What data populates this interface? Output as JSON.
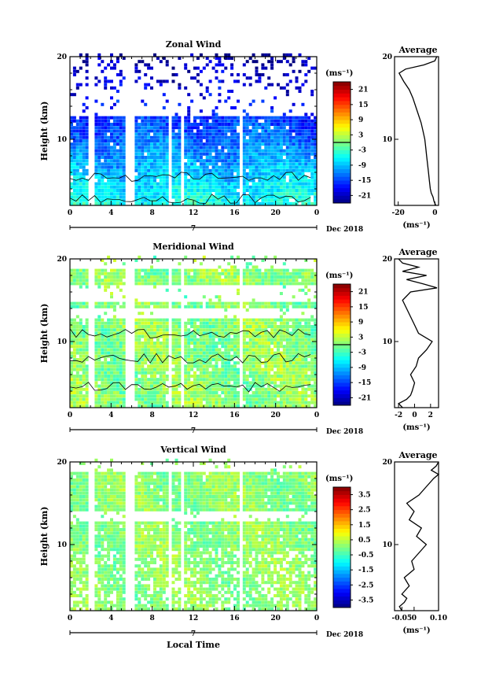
{
  "chart_data": [
    {
      "type": "heatmap",
      "title": "Zonal Wind",
      "ylabel": "Height (km)",
      "xlabel": "",
      "x_ticks": [
        "0",
        "4",
        "8",
        "12",
        "16",
        "20",
        "0"
      ],
      "y_ticks": [
        "20",
        "10"
      ],
      "date_label": "Dec 2018",
      "day_label": "7",
      "xlim": [
        0,
        24
      ],
      "ylim": [
        2,
        20
      ],
      "colorbar": {
        "unit": "(ms⁻¹)",
        "ticks": [
          "21",
          "15",
          "9",
          "3",
          "-3",
          "-9",
          "-15",
          "-21"
        ],
        "range": [
          -24,
          24
        ]
      },
      "field": {
        "base": -5,
        "trend": -0.25,
        "variation": 3
      },
      "zero_contour_heights": [
        2.8,
        5.5
      ],
      "average": {
        "title": "Average",
        "x_ticks": [
          "-20",
          "0"
        ],
        "xlim": [
          -22,
          2
        ],
        "unit": "(ms⁻¹)",
        "heights": [
          2,
          2.5,
          3,
          3.5,
          4,
          5,
          6,
          7,
          8,
          9,
          10,
          11,
          12,
          13,
          14,
          15,
          16,
          17,
          18,
          18.5,
          19,
          19.5,
          20
        ],
        "values": [
          0.5,
          -0.5,
          -1,
          -2,
          -2.5,
          -3,
          -3.5,
          -4,
          -4.5,
          -5,
          -5.5,
          -6.5,
          -7.5,
          -9,
          -10.5,
          -12,
          -14,
          -17,
          -19.5,
          -16,
          -6,
          0,
          1
        ]
      }
    },
    {
      "type": "heatmap",
      "title": "Meridional Wind",
      "ylabel": "Height (km)",
      "xlabel": "",
      "x_ticks": [
        "0",
        "4",
        "8",
        "12",
        "16",
        "20",
        "0"
      ],
      "y_ticks": [
        "20",
        "10"
      ],
      "date_label": "Dec 2018",
      "day_label": "7",
      "xlim": [
        0,
        24
      ],
      "ylim": [
        2,
        20
      ],
      "colorbar": {
        "unit": "(ms⁻¹)",
        "ticks": [
          "21",
          "15",
          "9",
          "3",
          "-3",
          "-9",
          "-15",
          "-21"
        ],
        "range": [
          -24,
          24
        ]
      },
      "field": {
        "base": 0.5,
        "trend": 0,
        "variation": 3
      },
      "zero_contour_heights": [
        4.5,
        8,
        11
      ],
      "average": {
        "title": "Average",
        "x_ticks": [
          "-2",
          "0",
          "2"
        ],
        "xlim": [
          -2.5,
          3
        ],
        "unit": "(ms⁻¹)",
        "heights": [
          2,
          2.5,
          3,
          3.5,
          4,
          5,
          6,
          7,
          8,
          9,
          10,
          11,
          12,
          13,
          14,
          15,
          16,
          16.5,
          17,
          17.5,
          18,
          18.5,
          19,
          19.5,
          20
        ],
        "values": [
          -1.5,
          -2,
          -1,
          -0.5,
          -0.3,
          0,
          -0.5,
          0.2,
          0.5,
          1.5,
          2.2,
          0.5,
          0,
          -0.5,
          -1,
          -1.5,
          -0.5,
          2.8,
          1,
          -1,
          1.5,
          -1.5,
          0.5,
          -1.5,
          -2
        ]
      }
    },
    {
      "type": "heatmap",
      "title": "Vertical Wind",
      "ylabel": "Height (km)",
      "xlabel": "Local Time",
      "x_ticks": [
        "0",
        "4",
        "8",
        "12",
        "16",
        "20",
        "0"
      ],
      "y_ticks": [
        "20",
        "10"
      ],
      "date_label": "Dec 2018",
      "day_label": "7",
      "xlim": [
        0,
        24
      ],
      "ylim": [
        2,
        20
      ],
      "colorbar": {
        "unit": "(ms⁻¹)",
        "ticks": [
          "3.5",
          "2.5",
          "1.5",
          "0.5",
          "-0.5",
          "-1.5",
          "-2.5",
          "-3.5"
        ],
        "range": [
          -4,
          4
        ]
      },
      "field": {
        "base": 0.1,
        "trend": 0,
        "variation": 0.4
      },
      "zero_contour_heights": [],
      "average": {
        "title": "Average",
        "x_ticks": [
          "-0.05",
          "0",
          "0.10"
        ],
        "xlim": [
          -0.08,
          0.1
        ],
        "unit": "(ms⁻¹)",
        "heights": [
          2,
          2.5,
          3,
          3.5,
          4,
          5,
          6,
          7,
          8,
          9,
          10,
          11,
          12,
          13,
          14,
          15,
          16,
          17,
          18,
          18.5,
          19,
          19.5,
          20
        ],
        "values": [
          -0.05,
          -0.06,
          -0.04,
          -0.03,
          -0.05,
          -0.02,
          -0.04,
          0.0,
          -0.01,
          0.02,
          0.05,
          0.01,
          0.03,
          -0.02,
          0.0,
          -0.03,
          0.02,
          0.05,
          0.08,
          0.1,
          0.07,
          0.09,
          0.1
        ]
      }
    }
  ]
}
